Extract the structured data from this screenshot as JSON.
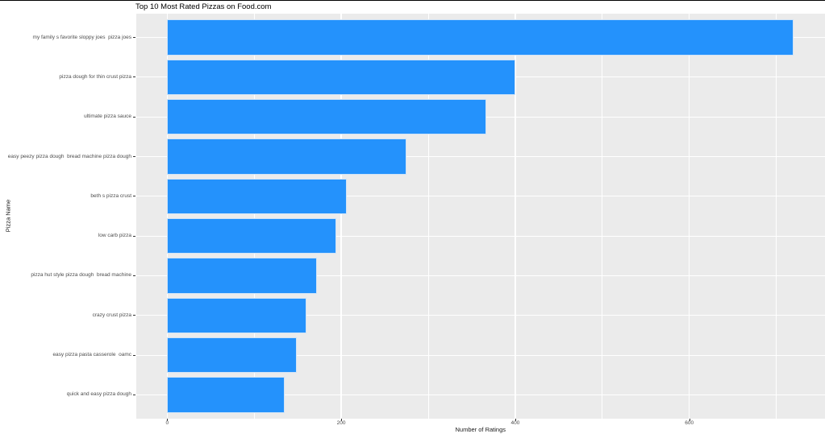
{
  "page": {
    "background": "#FFFFFF",
    "top_border_color": "#000000"
  },
  "chart_data": {
    "type": "bar",
    "orientation": "horizontal",
    "title": "Top 10 Most Rated Pizzas on Food.com",
    "xlabel": "Number of Ratings",
    "ylabel": "Pizza Name",
    "categories": [
      "my family s favorite sloppy joes  pizza joes",
      "pizza dough for thin crust pizza",
      "ultimate pizza sauce",
      "easy peezy pizza dough  bread machine pizza dough",
      "beth s pizza crust",
      "low carb pizza",
      "pizza hut style pizza dough  bread machine",
      "crazy crust pizza",
      "easy pizza pasta casserole  oamc",
      "quick and easy pizza dough"
    ],
    "values": [
      720,
      400,
      367,
      275,
      206,
      194,
      172,
      160,
      149,
      135
    ],
    "x_ticks": [
      0,
      200,
      400,
      600
    ],
    "x_minor_gridlines": [
      100,
      300,
      500,
      700
    ],
    "xlim": [
      -36,
      756
    ],
    "grid": true,
    "legend": false,
    "colors": {
      "bar_fill": "#2492FC",
      "bar_border": "#CFE3F7",
      "panel_background": "#EBEBEB",
      "gridline": "#FFFFFF",
      "tick_label": "#4D4D4D",
      "axis_title": "#1A1A1A",
      "title": "#000000"
    }
  }
}
